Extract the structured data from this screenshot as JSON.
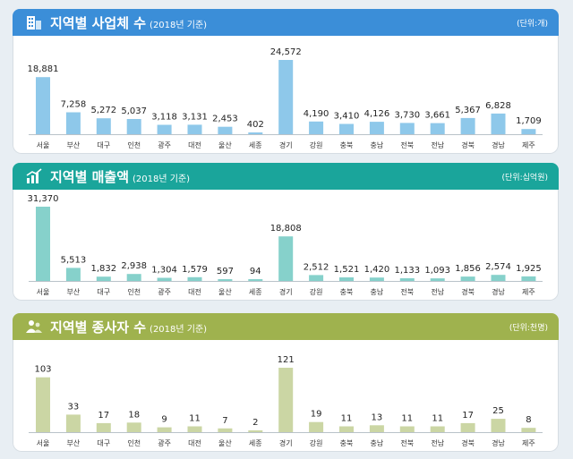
{
  "colors": {
    "blue": "#3b8ed8",
    "teal": "#1aa59b",
    "olive": "#9fb24e",
    "bar_blue": "#8ec8ea",
    "bar_teal": "#86d1cb",
    "bar_olive": "#cbd6a4"
  },
  "chart_data": [
    {
      "type": "bar",
      "title": "지역별 사업체 수",
      "subtitle": "(2018년 기준)",
      "unit": "(단위:개)",
      "icon": "building-icon",
      "categories": [
        "서울",
        "부산",
        "대구",
        "인천",
        "광주",
        "대전",
        "울산",
        "세종",
        "경기",
        "강원",
        "충북",
        "충남",
        "전북",
        "전남",
        "경북",
        "경남",
        "제주"
      ],
      "values": [
        18881,
        7258,
        5272,
        5037,
        3118,
        3131,
        2453,
        402,
        24572,
        4190,
        3410,
        4126,
        3730,
        3661,
        5367,
        6828,
        1709
      ],
      "labels": [
        "18,881",
        "7,258",
        "5,272",
        "5,037",
        "3,118",
        "3,131",
        "2,453",
        "402",
        "24,572",
        "4,190",
        "3,410",
        "4,126",
        "3,730",
        "3,661",
        "5,367",
        "6,828",
        "1,709"
      ]
    },
    {
      "type": "bar",
      "title": "지역별 매출액",
      "subtitle": "(2018년 기준)",
      "unit": "(단위:십억원)",
      "icon": "growth-chart-icon",
      "categories": [
        "서울",
        "부산",
        "대구",
        "인천",
        "광주",
        "대전",
        "울산",
        "세종",
        "경기",
        "강원",
        "충북",
        "충남",
        "전북",
        "전남",
        "경북",
        "경남",
        "제주"
      ],
      "values": [
        31370,
        5513,
        1832,
        2938,
        1304,
        1579,
        597,
        94,
        18808,
        2512,
        1521,
        1420,
        1133,
        1093,
        1856,
        2574,
        1925
      ],
      "labels": [
        "31,370",
        "5,513",
        "1,832",
        "2,938",
        "1,304",
        "1,579",
        "597",
        "94",
        "18,808",
        "2,512",
        "1,521",
        "1,420",
        "1,133",
        "1,093",
        "1,856",
        "2,574",
        "1,925"
      ]
    },
    {
      "type": "bar",
      "title": "지역별 종사자 수",
      "subtitle": "(2018년 기준)",
      "unit": "(단위:천명)",
      "icon": "people-icon",
      "categories": [
        "서울",
        "부산",
        "대구",
        "인천",
        "광주",
        "대전",
        "울산",
        "세종",
        "경기",
        "강원",
        "충북",
        "충남",
        "전북",
        "전남",
        "경북",
        "경남",
        "제주"
      ],
      "values": [
        103,
        33,
        17,
        18,
        9,
        11,
        7,
        2,
        121,
        19,
        11,
        13,
        11,
        11,
        17,
        25,
        8
      ],
      "labels": [
        "103",
        "33",
        "17",
        "18",
        "9",
        "11",
        "7",
        "2",
        "121",
        "19",
        "11",
        "13",
        "11",
        "11",
        "17",
        "25",
        "8"
      ]
    }
  ]
}
